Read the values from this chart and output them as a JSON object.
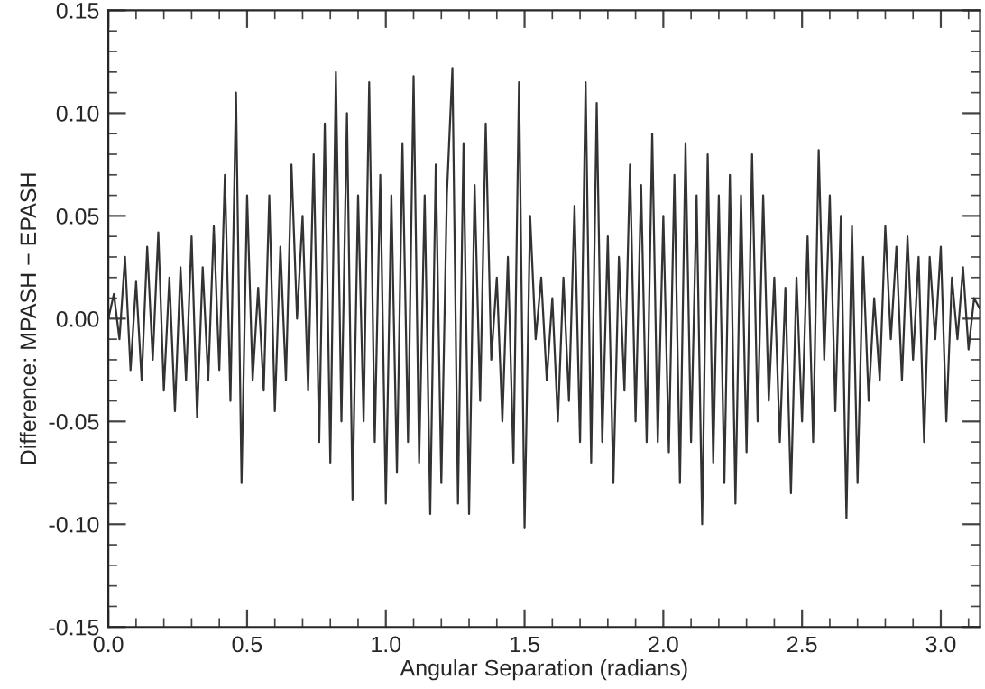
{
  "chart_data": {
    "type": "line",
    "xlabel": "Angular Separation (radians)",
    "ylabel": "Difference: MPASH − EPASH",
    "xlim": [
      0,
      3.1416
    ],
    "ylim": [
      -0.15,
      0.15
    ],
    "xticks": [
      {
        "value": 0,
        "label": "0.0"
      },
      {
        "value": 0.5,
        "label": "0.5"
      },
      {
        "value": 1,
        "label": "1.0"
      },
      {
        "value": 1.5,
        "label": "1.5"
      },
      {
        "value": 2,
        "label": "2.0"
      },
      {
        "value": 2.5,
        "label": "2.5"
      },
      {
        "value": 3,
        "label": "3.0"
      }
    ],
    "yticks": [
      {
        "value": -0.15,
        "label": "-0.15"
      },
      {
        "value": -0.1,
        "label": "-0.10"
      },
      {
        "value": -0.05,
        "label": "-0.05"
      },
      {
        "value": 0,
        "label": "0.00"
      },
      {
        "value": 0.05,
        "label": "0.05"
      },
      {
        "value": 0.1,
        "label": "0.10"
      },
      {
        "value": 0.15,
        "label": "0.15"
      }
    ],
    "grid": false,
    "marker": "none",
    "line_style": "solid",
    "x": [
      0.0,
      0.02,
      0.04,
      0.06,
      0.08,
      0.1,
      0.12,
      0.14,
      0.16,
      0.18,
      0.2,
      0.22,
      0.24,
      0.26,
      0.28,
      0.3,
      0.32,
      0.34,
      0.36,
      0.38,
      0.4,
      0.42,
      0.44,
      0.46,
      0.48,
      0.5,
      0.52,
      0.54,
      0.56,
      0.58,
      0.6,
      0.62,
      0.64,
      0.66,
      0.68,
      0.7,
      0.72,
      0.74,
      0.76,
      0.78,
      0.8,
      0.82,
      0.84,
      0.86,
      0.88,
      0.9,
      0.92,
      0.94,
      0.96,
      0.98,
      1.0,
      1.02,
      1.04,
      1.06,
      1.08,
      1.1,
      1.12,
      1.14,
      1.16,
      1.18,
      1.2,
      1.22,
      1.24,
      1.26,
      1.28,
      1.3,
      1.32,
      1.34,
      1.36,
      1.38,
      1.4,
      1.42,
      1.44,
      1.46,
      1.48,
      1.5,
      1.52,
      1.54,
      1.56,
      1.58,
      1.6,
      1.62,
      1.64,
      1.66,
      1.68,
      1.7,
      1.72,
      1.74,
      1.76,
      1.78,
      1.8,
      1.82,
      1.84,
      1.86,
      1.88,
      1.9,
      1.92,
      1.94,
      1.96,
      1.98,
      2.0,
      2.02,
      2.04,
      2.06,
      2.08,
      2.1,
      2.12,
      2.14,
      2.16,
      2.18,
      2.2,
      2.22,
      2.24,
      2.26,
      2.28,
      2.3,
      2.32,
      2.34,
      2.36,
      2.38,
      2.4,
      2.42,
      2.44,
      2.46,
      2.48,
      2.5,
      2.52,
      2.54,
      2.56,
      2.58,
      2.6,
      2.62,
      2.64,
      2.66,
      2.68,
      2.7,
      2.72,
      2.74,
      2.76,
      2.78,
      2.8,
      2.82,
      2.84,
      2.86,
      2.88,
      2.9,
      2.92,
      2.94,
      2.96,
      2.98,
      3.0,
      3.02,
      3.04,
      3.06,
      3.08,
      3.1,
      3.12,
      3.14
    ],
    "series": [
      {
        "color": "#333333",
        "values": [
          0.0,
          0.012,
          -0.01,
          0.03,
          -0.025,
          0.018,
          -0.03,
          0.035,
          -0.02,
          0.042,
          -0.035,
          0.02,
          -0.045,
          0.025,
          -0.03,
          0.04,
          -0.048,
          0.025,
          -0.03,
          0.045,
          -0.025,
          0.07,
          -0.04,
          0.11,
          -0.08,
          0.06,
          -0.03,
          0.015,
          -0.035,
          0.06,
          -0.045,
          0.035,
          -0.03,
          0.075,
          0.0,
          0.05,
          -0.035,
          0.08,
          -0.06,
          0.095,
          -0.07,
          0.12,
          -0.05,
          0.1,
          -0.088,
          0.06,
          -0.05,
          0.115,
          -0.06,
          0.07,
          -0.09,
          0.06,
          -0.075,
          0.085,
          -0.06,
          0.118,
          -0.07,
          0.06,
          -0.095,
          0.075,
          -0.08,
          0.06,
          0.122,
          -0.09,
          0.085,
          -0.095,
          0.065,
          -0.04,
          0.095,
          -0.02,
          0.02,
          -0.05,
          0.03,
          -0.07,
          0.115,
          -0.102,
          0.05,
          -0.01,
          0.02,
          -0.03,
          0.01,
          -0.05,
          0.02,
          -0.04,
          0.055,
          -0.06,
          0.115,
          -0.07,
          0.105,
          -0.06,
          0.04,
          -0.08,
          0.03,
          -0.035,
          0.075,
          -0.05,
          0.065,
          -0.06,
          0.09,
          -0.06,
          0.05,
          -0.065,
          0.07,
          -0.08,
          0.085,
          -0.06,
          0.06,
          -0.1,
          0.08,
          -0.07,
          0.06,
          -0.08,
          0.07,
          -0.09,
          0.06,
          -0.065,
          0.08,
          -0.05,
          0.06,
          -0.04,
          0.02,
          -0.06,
          0.015,
          -0.085,
          0.02,
          -0.05,
          0.04,
          -0.06,
          0.082,
          -0.02,
          0.06,
          -0.045,
          0.05,
          -0.097,
          0.045,
          -0.08,
          0.03,
          -0.04,
          0.01,
          -0.03,
          0.045,
          -0.01,
          0.035,
          -0.03,
          0.04,
          -0.02,
          0.03,
          -0.06,
          0.03,
          -0.01,
          0.035,
          -0.05,
          0.02,
          -0.01,
          0.025,
          -0.015,
          0.01,
          0.005
        ]
      }
    ]
  }
}
